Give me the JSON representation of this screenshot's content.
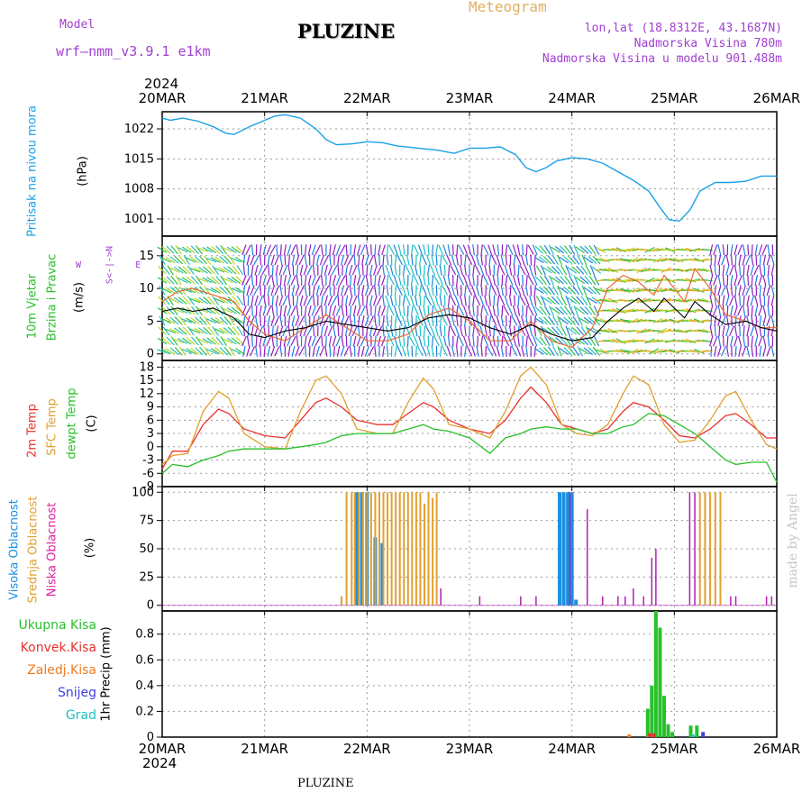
{
  "header": {
    "model_label": "Model",
    "model_name": "wrf—nmm_v3.9.1  e1km",
    "location": "PLUZINE",
    "title": "Meteogram",
    "lonlat": "lon,lat (18.8312E, 43.1687N)",
    "elevation": "Nadmorska Visina 780m",
    "model_elevation": "Nadmorska Visina u modelu 901.488m",
    "year": "2024",
    "footer_location": "PLUZINE",
    "watermark": "made by Angel"
  },
  "colors": {
    "pressure": "#1aa0e8",
    "temp2m": "#e8322d",
    "sfc_temp": "#e0a030",
    "dewpoint": "#27c02a",
    "high_cloud": "#1a90e0",
    "mid_cloud": "#e0a030",
    "low_cloud": "#b020b0",
    "total_precip": "#27c02a",
    "convective": "#e83030",
    "freezing": "#f07a20",
    "snow": "#4040e0",
    "hail": "#20c0c0",
    "wind_label": "#27c02a",
    "wind_dir_label": "#a040d0"
  },
  "panel_labels": {
    "pressure": {
      "name": "Pritisak na nivou mora",
      "unit": "(hPa)"
    },
    "wind": {
      "line1": "10m Vjetar",
      "line2": "Brzina i Pravac",
      "unit": "(m/s)",
      "compass": [
        "N",
        "^",
        "|",
        "W <-|-> E",
        "|",
        "v",
        "S"
      ]
    },
    "temp": {
      "t2m": "2m Temp",
      "sfc": "SFC Temp",
      "dew": "dewpt Temp",
      "unit": "(C)"
    },
    "cloud": {
      "high": "Visoka Oblacnost",
      "mid": "Srednja Oblacnost",
      "low": "Niska Oblacnost",
      "unit": "(%)"
    },
    "precip": {
      "total": "Ukupna Kisa",
      "conv": "Konvek.Kisa",
      "frz": "Zaledj.Kisa",
      "snow": "Snijeg",
      "hail": "Grad",
      "unit": "1hr Precip (mm)"
    }
  },
  "chart_data": [
    {
      "type": "line",
      "name": "pressure",
      "x_categories": [
        "20MAR",
        "21MAR",
        "22MAR",
        "23MAR",
        "24MAR",
        "25MAR",
        "26MAR"
      ],
      "ylim": [
        997,
        1026
      ],
      "yticks": [
        1001,
        1008,
        1015,
        1022
      ],
      "x": [
        0,
        0.08,
        0.2,
        0.35,
        0.5,
        0.62,
        0.7,
        0.85,
        1.0,
        1.1,
        1.2,
        1.35,
        1.5,
        1.6,
        1.7,
        1.85,
        2.0,
        2.15,
        2.3,
        2.5,
        2.7,
        2.85,
        3.0,
        3.15,
        3.3,
        3.45,
        3.55,
        3.65,
        3.75,
        3.85,
        4.0,
        4.15,
        4.3,
        4.45,
        4.6,
        4.75,
        4.85,
        4.95,
        5.05,
        5.15,
        5.25,
        5.4,
        5.55,
        5.7,
        5.85,
        6.0
      ],
      "values": [
        1024.5,
        1024.0,
        1024.5,
        1023.8,
        1022.5,
        1021.0,
        1020.7,
        1022.5,
        1024.0,
        1025.0,
        1025.3,
        1024.5,
        1022.0,
        1019.5,
        1018.3,
        1018.5,
        1019.0,
        1018.8,
        1018.0,
        1017.5,
        1017.0,
        1016.3,
        1017.5,
        1017.5,
        1017.8,
        1016.0,
        1013.0,
        1012.0,
        1013.0,
        1014.5,
        1015.3,
        1015.0,
        1014.0,
        1012.0,
        1010.0,
        1007.5,
        1004.0,
        1000.8,
        1000.5,
        1003.0,
        1007.5,
        1009.5,
        1009.5,
        1009.8,
        1011.0,
        1011.0
      ],
      "series_name": "Pritisak na nivou mora"
    },
    {
      "type": "line",
      "name": "wind",
      "ylim": [
        -1,
        18
      ],
      "yticks": [
        0,
        5,
        10,
        15
      ],
      "x": [
        0,
        0.15,
        0.3,
        0.5,
        0.7,
        0.85,
        1.0,
        1.2,
        1.4,
        1.6,
        1.8,
        2.0,
        2.2,
        2.4,
        2.6,
        2.8,
        3.0,
        3.2,
        3.4,
        3.6,
        3.8,
        4.0,
        4.2,
        4.35,
        4.5,
        4.65,
        4.8,
        4.9,
        5.0,
        5.1,
        5.2,
        5.35,
        5.5,
        5.7,
        5.85,
        6.0
      ],
      "speed": [
        6.5,
        7.0,
        6.5,
        7.0,
        5.5,
        3.0,
        2.5,
        3.5,
        4.0,
        5.0,
        4.5,
        4.0,
        3.5,
        4.0,
        5.5,
        6.0,
        5.5,
        4.0,
        3.0,
        4.5,
        3.0,
        2.0,
        2.5,
        5.0,
        7.0,
        8.5,
        6.5,
        8.5,
        7.0,
        5.5,
        8.0,
        6.0,
        4.5,
        5.0,
        4.0,
        3.5
      ],
      "gust": [
        8,
        9.5,
        10,
        9,
        8,
        5,
        3,
        2,
        4,
        6,
        4,
        2,
        2,
        3,
        6,
        7,
        5,
        2,
        2,
        5,
        2,
        1,
        4,
        10,
        12,
        11,
        9,
        12,
        10,
        8,
        13,
        10,
        6,
        5,
        4,
        4
      ]
    },
    {
      "type": "line",
      "name": "temperature",
      "ylim": [
        -9,
        19.5
      ],
      "yticks": [
        -9,
        -6,
        -3,
        0,
        3,
        6,
        9,
        12,
        15,
        18
      ],
      "x": [
        0,
        0.1,
        0.25,
        0.4,
        0.55,
        0.65,
        0.8,
        1.0,
        1.2,
        1.35,
        1.5,
        1.6,
        1.75,
        1.9,
        2.1,
        2.25,
        2.4,
        2.55,
        2.65,
        2.8,
        3.0,
        3.2,
        3.35,
        3.5,
        3.6,
        3.75,
        3.9,
        4.05,
        4.2,
        4.35,
        4.5,
        4.6,
        4.75,
        4.9,
        5.05,
        5.2,
        5.35,
        5.5,
        5.6,
        5.75,
        5.9,
        6.0
      ],
      "series": [
        {
          "name": "2m Temp",
          "values": [
            -5,
            -1,
            -1,
            5,
            8.5,
            7.5,
            4,
            2.5,
            2,
            6,
            10,
            11,
            9,
            6,
            5,
            5,
            7.5,
            10,
            9,
            6,
            4,
            3,
            6,
            11,
            13.5,
            10,
            5,
            4,
            3,
            4,
            8,
            10,
            9,
            6,
            2.5,
            2,
            4,
            7,
            7.5,
            5,
            2,
            2
          ]
        },
        {
          "name": "SFC Temp",
          "values": [
            -4,
            -2,
            -1.5,
            8,
            12.5,
            11,
            3,
            0,
            -0.5,
            8,
            15,
            16,
            12,
            4,
            3,
            3,
            10,
            15.5,
            13,
            5,
            4,
            2,
            8,
            16,
            18,
            14,
            5,
            3,
            2.5,
            5,
            12,
            16,
            14,
            5,
            1,
            1.5,
            6,
            11.5,
            12.5,
            6,
            0.5,
            -0.5
          ]
        },
        {
          "name": "dewpt Temp",
          "values": [
            -6,
            -4,
            -4.5,
            -3,
            -2,
            -1,
            -0.5,
            -0.5,
            -0.5,
            0,
            0.5,
            1,
            2.5,
            3,
            3,
            3,
            4,
            5,
            4,
            3.5,
            2,
            -1.5,
            2,
            3,
            4,
            4.5,
            4,
            4,
            3,
            3,
            4.5,
            5,
            7.5,
            7,
            5,
            3,
            0,
            -3,
            -4,
            -3.5,
            -3.5,
            -8
          ]
        }
      ]
    },
    {
      "type": "bar",
      "name": "cloud",
      "ylim": [
        -5,
        105
      ],
      "yticks": [
        0,
        25,
        50,
        75,
        100
      ],
      "series": [
        {
          "name": "Visoka Oblacnost",
          "x": [
            1.9,
            1.95,
            2.0,
            2.08,
            2.15,
            3.88,
            3.92,
            3.96,
            4.0,
            4.04
          ],
          "values": [
            100,
            100,
            100,
            60,
            55,
            100,
            100,
            100,
            100,
            5
          ]
        },
        {
          "name": "Srednja Oblacnost",
          "x": [
            1.75,
            1.8,
            1.85,
            1.88,
            1.92,
            1.96,
            2.0,
            2.04,
            2.08,
            2.12,
            2.16,
            2.2,
            2.24,
            2.28,
            2.32,
            2.36,
            2.4,
            2.44,
            2.48,
            2.52,
            2.56,
            2.6,
            2.64,
            2.68,
            5.25,
            5.3,
            5.35,
            5.4,
            5.45
          ],
          "values": [
            8,
            100,
            100,
            100,
            100,
            100,
            100,
            100,
            100,
            100,
            100,
            100,
            100,
            100,
            100,
            100,
            100,
            100,
            100,
            100,
            90,
            100,
            95,
            100,
            100,
            100,
            100,
            100,
            100
          ]
        },
        {
          "name": "Niska Oblacnost",
          "x": [
            2.72,
            3.1,
            3.5,
            3.65,
            3.98,
            4.15,
            4.3,
            4.45,
            4.52,
            4.6,
            4.7,
            4.78,
            4.82,
            5.15,
            5.2,
            5.55,
            5.6,
            5.9,
            5.95
          ],
          "values": [
            15,
            8,
            8,
            8,
            100,
            85,
            8,
            8,
            8,
            15,
            8,
            42,
            50,
            100,
            100,
            8,
            8,
            8,
            8
          ]
        }
      ]
    },
    {
      "type": "bar",
      "name": "precipitation",
      "ylim": [
        0,
        0.98
      ],
      "yticks": [
        0,
        0.2,
        0.4,
        0.6,
        0.8
      ],
      "series": [
        {
          "name": "Ukupna Kisa",
          "x": [
            4.74,
            4.78,
            4.82,
            4.86,
            4.9,
            4.94,
            4.98,
            5.16,
            5.22
          ],
          "values": [
            0.22,
            0.4,
            0.98,
            0.85,
            0.32,
            0.1,
            0.04,
            0.09,
            0.09
          ]
        },
        {
          "name": "Konvek.Kisa",
          "x": [
            4.76,
            4.8
          ],
          "values": [
            0.03,
            0.03
          ]
        },
        {
          "name": "Zaledj.Kisa",
          "x": [
            4.56
          ],
          "values": [
            0.02
          ]
        },
        {
          "name": "Snijeg",
          "x": [
            5.28
          ],
          "values": [
            0.04
          ]
        },
        {
          "name": "Grad",
          "x": [
            5.18
          ],
          "values": [
            0.02
          ]
        }
      ]
    }
  ]
}
